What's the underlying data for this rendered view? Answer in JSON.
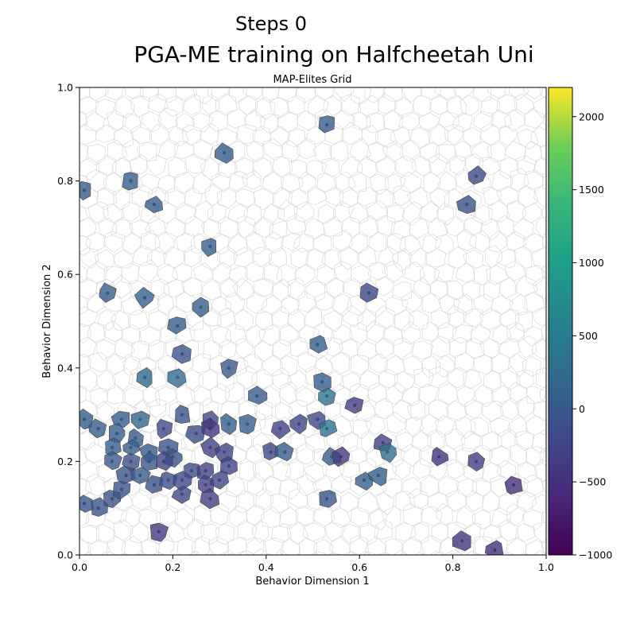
{
  "steps_label": "Steps 0",
  "chart_data": {
    "type": "scatter",
    "title": "PGA-ME training on Halfcheetah Uni",
    "subtitle": "MAP-Elites Grid",
    "xlabel": "Behavior Dimension 1",
    "ylabel": "Behavior Dimension 2",
    "xlim": [
      0.0,
      1.0
    ],
    "ylim": [
      0.0,
      1.0
    ],
    "xticks": [
      "0.0",
      "0.2",
      "0.4",
      "0.6",
      "0.8",
      "1.0"
    ],
    "yticks": [
      "0.0",
      "0.2",
      "0.4",
      "0.6",
      "0.8",
      "1.0"
    ],
    "grid": false,
    "colormap": "viridis",
    "colorbar": {
      "min": -1000,
      "max": 2200,
      "ticks": [
        "-1000",
        "-500",
        "0",
        "500",
        "1000",
        "1500",
        "2000"
      ]
    },
    "points": [
      {
        "x": 0.53,
        "y": 0.92,
        "value": 40
      },
      {
        "x": 0.31,
        "y": 0.86,
        "value": 60
      },
      {
        "x": 0.85,
        "y": 0.81,
        "value": -150
      },
      {
        "x": 0.11,
        "y": 0.8,
        "value": 40
      },
      {
        "x": 0.01,
        "y": 0.78,
        "value": 40
      },
      {
        "x": 0.16,
        "y": 0.75,
        "value": 40
      },
      {
        "x": 0.83,
        "y": 0.75,
        "value": -80
      },
      {
        "x": 0.28,
        "y": 0.66,
        "value": 80
      },
      {
        "x": 0.06,
        "y": 0.56,
        "value": 40
      },
      {
        "x": 0.14,
        "y": 0.55,
        "value": 80
      },
      {
        "x": 0.62,
        "y": 0.56,
        "value": -250
      },
      {
        "x": 0.26,
        "y": 0.53,
        "value": 80
      },
      {
        "x": 0.21,
        "y": 0.49,
        "value": 40
      },
      {
        "x": 0.51,
        "y": 0.45,
        "value": 40
      },
      {
        "x": 0.22,
        "y": 0.43,
        "value": -60
      },
      {
        "x": 0.32,
        "y": 0.4,
        "value": 0
      },
      {
        "x": 0.14,
        "y": 0.38,
        "value": 220
      },
      {
        "x": 0.21,
        "y": 0.38,
        "value": 250
      },
      {
        "x": 0.52,
        "y": 0.37,
        "value": 60
      },
      {
        "x": 0.53,
        "y": 0.34,
        "value": 370
      },
      {
        "x": 0.38,
        "y": 0.34,
        "value": 60
      },
      {
        "x": 0.59,
        "y": 0.32,
        "value": -350
      },
      {
        "x": 0.22,
        "y": 0.3,
        "value": -100
      },
      {
        "x": 0.01,
        "y": 0.29,
        "value": 40
      },
      {
        "x": 0.09,
        "y": 0.29,
        "value": 40
      },
      {
        "x": 0.13,
        "y": 0.29,
        "value": 150
      },
      {
        "x": 0.18,
        "y": 0.27,
        "value": -200
      },
      {
        "x": 0.28,
        "y": 0.29,
        "value": -200
      },
      {
        "x": 0.32,
        "y": 0.28,
        "value": 60
      },
      {
        "x": 0.36,
        "y": 0.28,
        "value": 60
      },
      {
        "x": 0.43,
        "y": 0.27,
        "value": -300
      },
      {
        "x": 0.47,
        "y": 0.28,
        "value": -250
      },
      {
        "x": 0.51,
        "y": 0.29,
        "value": -200
      },
      {
        "x": 0.53,
        "y": 0.27,
        "value": 350
      },
      {
        "x": 0.04,
        "y": 0.27,
        "value": 40
      },
      {
        "x": 0.08,
        "y": 0.26,
        "value": 40
      },
      {
        "x": 0.12,
        "y": 0.25,
        "value": 40
      },
      {
        "x": 0.25,
        "y": 0.26,
        "value": -150
      },
      {
        "x": 0.28,
        "y": 0.27,
        "value": -450
      },
      {
        "x": 0.65,
        "y": 0.24,
        "value": -300
      },
      {
        "x": 0.07,
        "y": 0.23,
        "value": 120
      },
      {
        "x": 0.11,
        "y": 0.23,
        "value": 100
      },
      {
        "x": 0.15,
        "y": 0.22,
        "value": 60
      },
      {
        "x": 0.19,
        "y": 0.23,
        "value": -60
      },
      {
        "x": 0.2,
        "y": 0.21,
        "value": -100
      },
      {
        "x": 0.28,
        "y": 0.23,
        "value": -300
      },
      {
        "x": 0.31,
        "y": 0.22,
        "value": -250
      },
      {
        "x": 0.41,
        "y": 0.22,
        "value": -250
      },
      {
        "x": 0.44,
        "y": 0.22,
        "value": 40
      },
      {
        "x": 0.54,
        "y": 0.21,
        "value": 40
      },
      {
        "x": 0.56,
        "y": 0.21,
        "value": -400
      },
      {
        "x": 0.66,
        "y": 0.22,
        "value": 300
      },
      {
        "x": 0.77,
        "y": 0.21,
        "value": -450
      },
      {
        "x": 0.85,
        "y": 0.2,
        "value": -300
      },
      {
        "x": 0.07,
        "y": 0.2,
        "value": 0
      },
      {
        "x": 0.11,
        "y": 0.2,
        "value": -100
      },
      {
        "x": 0.15,
        "y": 0.2,
        "value": 0
      },
      {
        "x": 0.18,
        "y": 0.2,
        "value": -250
      },
      {
        "x": 0.24,
        "y": 0.18,
        "value": -150
      },
      {
        "x": 0.27,
        "y": 0.18,
        "value": -300
      },
      {
        "x": 0.32,
        "y": 0.19,
        "value": -250
      },
      {
        "x": 0.64,
        "y": 0.17,
        "value": 40
      },
      {
        "x": 0.1,
        "y": 0.17,
        "value": -100
      },
      {
        "x": 0.13,
        "y": 0.17,
        "value": 40
      },
      {
        "x": 0.16,
        "y": 0.15,
        "value": -100
      },
      {
        "x": 0.19,
        "y": 0.16,
        "value": -150
      },
      {
        "x": 0.22,
        "y": 0.16,
        "value": -200
      },
      {
        "x": 0.27,
        "y": 0.15,
        "value": -300
      },
      {
        "x": 0.3,
        "y": 0.16,
        "value": -250
      },
      {
        "x": 0.61,
        "y": 0.16,
        "value": 80
      },
      {
        "x": 0.93,
        "y": 0.15,
        "value": -500
      },
      {
        "x": 0.09,
        "y": 0.14,
        "value": -100
      },
      {
        "x": 0.22,
        "y": 0.13,
        "value": -200
      },
      {
        "x": 0.28,
        "y": 0.12,
        "value": -300
      },
      {
        "x": 0.53,
        "y": 0.12,
        "value": -80
      },
      {
        "x": 0.07,
        "y": 0.12,
        "value": -60
      },
      {
        "x": 0.01,
        "y": 0.11,
        "value": -60
      },
      {
        "x": 0.04,
        "y": 0.1,
        "value": -60
      },
      {
        "x": 0.17,
        "y": 0.05,
        "value": -400
      },
      {
        "x": 0.82,
        "y": 0.03,
        "value": -450
      },
      {
        "x": 0.89,
        "y": 0.01,
        "value": -500
      }
    ]
  }
}
